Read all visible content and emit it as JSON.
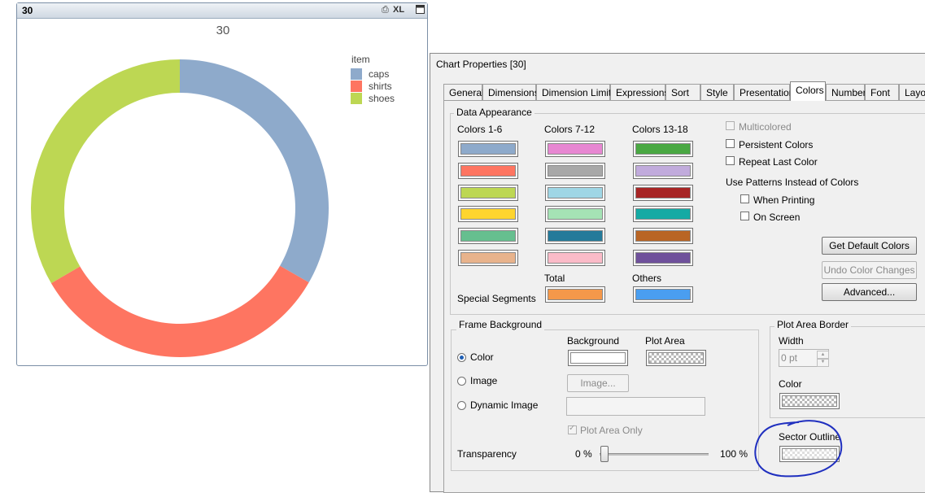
{
  "chart": {
    "window_title": "30",
    "title": "30",
    "caption_icons": [
      "print-icon",
      "xl-icon",
      "maximize-icon"
    ],
    "caption_xl_label": "XL",
    "legend_title": "item"
  },
  "chart_data": {
    "type": "pie",
    "title": "30",
    "legend_title": "item",
    "donut": true,
    "legend_position": "top-right",
    "categories": [
      "caps",
      "shirts",
      "shoes"
    ],
    "values": [
      33.3,
      33.3,
      33.4
    ],
    "colors": [
      "#8eaacb",
      "#fe7561",
      "#bdd753"
    ]
  },
  "dialog": {
    "title": "Chart Properties [30]",
    "tabs": [
      "General",
      "Dimensions",
      "Dimension Limits",
      "Expressions",
      "Sort",
      "Style",
      "Presentation",
      "Colors",
      "Number",
      "Font",
      "Layout"
    ],
    "active_tab": "Colors",
    "data_appearance": {
      "label": "Data Appearance",
      "col1_label": "Colors 1-6",
      "col2_label": "Colors 7-12",
      "col3_label": "Colors 13-18",
      "colors_1_6": [
        "#8eaacb",
        "#fe7561",
        "#bdd753",
        "#fed52f",
        "#66bf8f",
        "#e8b38c"
      ],
      "colors_7_12": [
        "#e787d2",
        "#a8a8a8",
        "#9fd6e5",
        "#a5e3b5",
        "#247a9a",
        "#fbbbc8"
      ],
      "colors_13_18": [
        "#4aa843",
        "#c1abdc",
        "#a72424",
        "#15aaa4",
        "#b96524",
        "#6f519b"
      ],
      "total_label": "Total",
      "total_color": "#f4984a",
      "others_label": "Others",
      "others_color": "#4a9ef0",
      "special_segments_label": "Special Segments",
      "multicolored_label": "Multicolored",
      "persistent_colors_label": "Persistent Colors",
      "repeat_last_color_label": "Repeat Last Color",
      "use_patterns_label": "Use Patterns Instead of Colors",
      "when_printing_label": "When Printing",
      "on_screen_label": "On Screen",
      "get_default_colors": "Get Default Colors",
      "undo_color_changes": "Undo Color Changes",
      "advanced": "Advanced..."
    },
    "frame_background": {
      "label": "Frame Background",
      "background_label": "Background",
      "plot_area_label": "Plot Area",
      "color_option": "Color",
      "image_option": "Image",
      "dynamic_image_option": "Dynamic Image",
      "image_button": "Image...",
      "plot_area_only_label": "Plot Area Only",
      "transparency_label": "Transparency",
      "transparency_min": "0 %",
      "transparency_max": "100 %",
      "transparency_value": 0
    },
    "plot_area_border": {
      "label": "Plot Area Border",
      "width_label": "Width",
      "width_value": "0 pt",
      "color_label": "Color"
    },
    "sector_outline": {
      "label": "Sector Outline"
    },
    "annotation_color": "#1f2fbf"
  }
}
